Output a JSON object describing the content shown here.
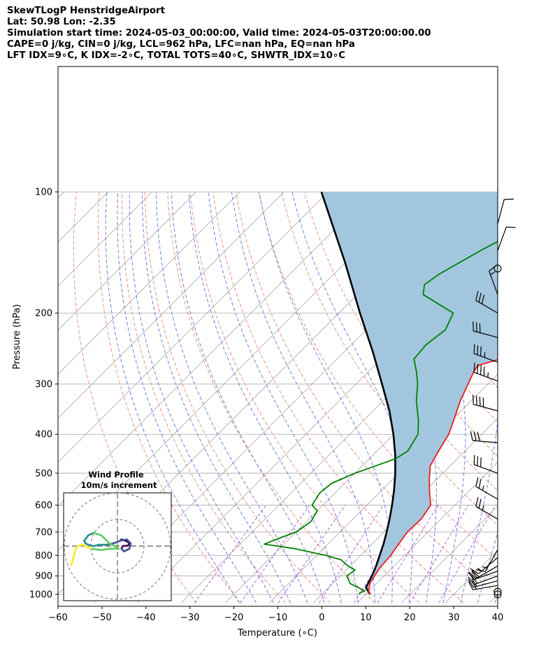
{
  "header": {
    "line1": "SkewTLogP HenstridgeAirport",
    "line2": "Lat: 50.98   Lon: -2.35",
    "line3": "Simulation start time: 2024-05-03_00:00:00, Valid time: 2024-05-03T20:00:00.00",
    "line4": "CAPE=0 j/kg, CIN=0 j/kg, LCL=962 hPa, LFC=nan hPa, EQ=nan hPa",
    "line5": "LFT IDX=9∘C, K IDX=-2∘C, TOTAL TOTS=40∘C, SHWTR_IDX=10∘C"
  },
  "chart_data": {
    "type": "skewt-logp",
    "xlabel": "Temperature (∘C)",
    "ylabel": "Pressure (hPa)",
    "xlim": [
      -60,
      40
    ],
    "ylim_hpa": [
      1050,
      100
    ],
    "x_ticks": [
      -60,
      -50,
      -40,
      -30,
      -20,
      -10,
      0,
      10,
      20,
      30,
      40
    ],
    "y_ticks": [
      1000,
      900,
      800,
      700,
      600,
      500,
      400,
      300,
      200,
      100
    ],
    "grid": true,
    "skew_deg": 45,
    "colors": {
      "temperature": "#ee1c1c",
      "dewpoint": "#008000",
      "parcel": "#000000",
      "cape_fill": "#a3c6df",
      "dry_adiabat": "#f08080",
      "moist_adiabat": "#6b6bf0",
      "mixing_ratio": "#9c54d8",
      "isotherm": "#a8a8a8"
    },
    "temperature": {
      "pressure_hpa": [
        1000,
        980,
        960,
        940,
        900,
        860,
        800,
        760,
        700,
        650,
        600,
        560,
        520,
        480,
        440,
        400,
        370,
        330,
        300,
        280,
        270,
        240,
        220,
        200,
        180,
        160,
        140,
        125,
        110,
        100
      ],
      "temp_c": [
        11.0,
        9.8,
        9.2,
        8.5,
        7.8,
        7.2,
        6.8,
        6.2,
        5.3,
        5.5,
        4.5,
        1.5,
        -1.5,
        -4.5,
        -6.0,
        -7.5,
        -9.5,
        -12.5,
        -14.5,
        -16.0,
        -16.5,
        -5.0,
        -2.5,
        0.5,
        4.0,
        8.0,
        13.0,
        16.5,
        20.0,
        22.0
      ]
    },
    "dewpoint": {
      "pressure_hpa": [
        1000,
        990,
        980,
        960,
        940,
        900,
        870,
        850,
        820,
        800,
        770,
        750,
        720,
        700,
        660,
        620,
        600,
        560,
        530,
        500,
        480,
        460,
        440,
        400,
        370,
        330,
        300,
        280,
        260,
        240,
        220,
        200,
        180,
        170,
        160,
        140,
        125,
        100
      ],
      "temp_c": [
        8.5,
        8.3,
        9.0,
        6.5,
        4.0,
        1.5,
        2.0,
        -0.5,
        -3.5,
        -8.0,
        -16.5,
        -24.5,
        -22.0,
        -20.0,
        -19.0,
        -20.0,
        -22.5,
        -23.5,
        -23.0,
        -20.0,
        -17.0,
        -14.0,
        -13.0,
        -14.5,
        -17.5,
        -22.5,
        -26.0,
        -29.0,
        -32.5,
        -33.0,
        -32.0,
        -34.0,
        -45.0,
        -47.0,
        -46.0,
        -42.0,
        -38.0,
        -30.0
      ]
    },
    "parcel": {
      "pressure_hpa": [
        1000,
        962,
        900,
        850,
        800,
        750,
        700,
        650,
        600,
        550,
        500,
        450,
        400,
        350,
        300,
        250,
        200,
        150,
        100
      ],
      "temp_c": [
        11.0,
        8.5,
        7.2,
        5.9,
        4.3,
        2.6,
        0.6,
        -1.7,
        -4.3,
        -7.3,
        -10.8,
        -15.0,
        -20.1,
        -26.3,
        -34.1,
        -43.4,
        -55.2,
        -70.0,
        -91.5
      ]
    },
    "hodograph": {
      "title": "Wind Profile",
      "subtitle": "10m/s increment",
      "ring_step_ms": 10,
      "rings": 3,
      "u_ms": [
        1,
        1.5,
        3,
        4,
        4.5,
        4,
        2,
        1.5,
        2.5,
        4.5,
        5,
        3.5,
        1,
        -1.5,
        -4,
        -7,
        -9,
        -11,
        -12,
        -12.5,
        -11,
        -9,
        -6,
        -3,
        -1,
        0.5,
        -3,
        -6,
        -10,
        -13,
        -15,
        -16,
        -16.5,
        -17,
        -17.5
      ],
      "v_ms": [
        2,
        2.5,
        2,
        1.5,
        1,
        0.2,
        0,
        -1,
        -2,
        -1,
        1,
        2.5,
        2,
        1,
        0.5,
        0.5,
        0,
        0.5,
        1,
        2,
        4,
        5,
        4,
        1,
        0,
        -1,
        -1,
        -1.5,
        -1,
        0.5,
        0,
        -2,
        -4,
        -6,
        -7
      ],
      "colors": [
        "#440154",
        "#3b528b",
        "#21908d",
        "#5dc963",
        "#fde725"
      ]
    },
    "wind_barbs": [
      {
        "p": 1000,
        "speed_kt": 0,
        "dir": 0,
        "calm": true
      },
      {
        "p": 985,
        "speed_kt": 0,
        "dir": 0,
        "calm": true
      },
      {
        "p": 950,
        "speed_kt": 20,
        "dir": 260
      },
      {
        "p": 925,
        "speed_kt": 20,
        "dir": 255
      },
      {
        "p": 900,
        "speed_kt": 20,
        "dir": 250
      },
      {
        "p": 875,
        "speed_kt": 20,
        "dir": 250
      },
      {
        "p": 850,
        "speed_kt": 20,
        "dir": 240
      },
      {
        "p": 810,
        "speed_kt": 15,
        "dir": 230
      },
      {
        "p": 775,
        "speed_kt": 15,
        "dir": 210
      },
      {
        "p": 650,
        "speed_kt": 25,
        "dir": 300
      },
      {
        "p": 580,
        "speed_kt": 25,
        "dir": 300
      },
      {
        "p": 500,
        "speed_kt": 30,
        "dir": 290
      },
      {
        "p": 420,
        "speed_kt": 30,
        "dir": 275
      },
      {
        "p": 350,
        "speed_kt": 40,
        "dir": 285
      },
      {
        "p": 295,
        "speed_kt": 45,
        "dir": 290
      },
      {
        "p": 265,
        "speed_kt": 35,
        "dir": 290
      },
      {
        "p": 230,
        "speed_kt": 30,
        "dir": 285
      },
      {
        "p": 200,
        "speed_kt": 30,
        "dir": 300
      },
      {
        "p": 180,
        "speed_kt": 15,
        "dir": 340
      },
      {
        "p": 155,
        "speed_kt": 0,
        "dir": 0,
        "calm": true
      },
      {
        "p": 140,
        "speed_kt": 10,
        "dir": 20
      },
      {
        "p": 120,
        "speed_kt": 10,
        "dir": 15
      }
    ]
  }
}
